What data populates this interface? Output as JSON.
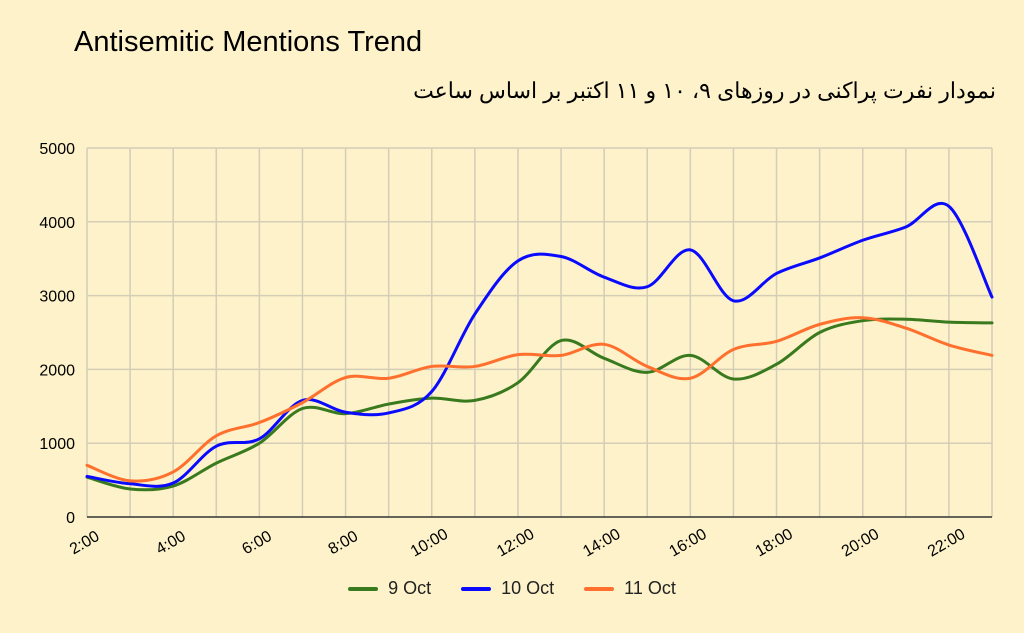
{
  "chart_data": {
    "type": "line",
    "title": "Antisemitic Mentions Trend",
    "subtitle": "نمودار نفرت پراکنی در روزهای ۹، ۱۰ و ۱۱ اکتبر بر اساس ساعت",
    "xlabel": "",
    "ylabel": "",
    "x": [
      "2:00",
      "3:00",
      "4:00",
      "5:00",
      "6:00",
      "7:00",
      "8:00",
      "9:00",
      "10:00",
      "11:00",
      "12:00",
      "13:00",
      "14:00",
      "15:00",
      "16:00",
      "17:00",
      "18:00",
      "19:00",
      "20:00",
      "21:00",
      "22:00",
      "23:00"
    ],
    "x_tick_labels": [
      "2:00",
      "4:00",
      "6:00",
      "8:00",
      "10:00",
      "12:00",
      "14:00",
      "16:00",
      "18:00",
      "20:00",
      "22:00"
    ],
    "ylim": [
      0,
      5000
    ],
    "y_ticks": [
      0,
      1000,
      2000,
      3000,
      4000,
      5000
    ],
    "grid": true,
    "legend_position": "bottom",
    "series": [
      {
        "name": "9 Oct",
        "color": "#3a7a1f",
        "values": [
          540,
          380,
          420,
          730,
          1000,
          1470,
          1400,
          1530,
          1610,
          1580,
          1820,
          2390,
          2150,
          1960,
          2190,
          1870,
          2070,
          2500,
          2660,
          2680,
          2640,
          2630
        ]
      },
      {
        "name": "10 Oct",
        "color": "#0a0aff",
        "values": [
          550,
          450,
          460,
          960,
          1060,
          1580,
          1420,
          1410,
          1700,
          2750,
          3470,
          3530,
          3250,
          3120,
          3620,
          2930,
          3300,
          3510,
          3750,
          3930,
          4210,
          2980
        ]
      },
      {
        "name": "11 Oct",
        "color": "#ff6f2e",
        "values": [
          700,
          490,
          610,
          1100,
          1280,
          1550,
          1890,
          1880,
          2040,
          2040,
          2200,
          2190,
          2340,
          2040,
          1880,
          2270,
          2380,
          2610,
          2700,
          2560,
          2330,
          2190
        ]
      }
    ]
  }
}
